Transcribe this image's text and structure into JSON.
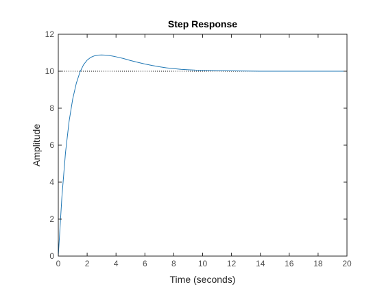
{
  "chart_data": {
    "type": "line",
    "title": "Step Response",
    "xlabel": "Time (seconds)",
    "ylabel": "Amplitude",
    "xlim": [
      0,
      20
    ],
    "ylim": [
      0,
      12
    ],
    "xticks": [
      0,
      2,
      4,
      6,
      8,
      10,
      12,
      14,
      16,
      18,
      20
    ],
    "yticks": [
      0,
      2,
      4,
      6,
      8,
      10,
      12
    ],
    "grid": false,
    "legend": "none",
    "series": [
      {
        "color": "#1f77b4",
        "style": "solid",
        "x": [
          0,
          0.25,
          0.5,
          0.75,
          1.0,
          1.25,
          1.5,
          1.75,
          2.0,
          2.25,
          2.5,
          2.75,
          3.0,
          3.25,
          3.5,
          3.75,
          4.0,
          4.5,
          5.0,
          5.5,
          6.0,
          6.5,
          7.0,
          7.5,
          8.0,
          8.5,
          9.0,
          9.5,
          10.0,
          11.0,
          12.0,
          13.0,
          14.0,
          16.0,
          18.0,
          20.0
        ],
        "y": [
          0,
          3.2,
          5.6,
          7.3,
          8.5,
          9.35,
          9.95,
          10.35,
          10.6,
          10.75,
          10.83,
          10.87,
          10.88,
          10.87,
          10.85,
          10.82,
          10.78,
          10.69,
          10.58,
          10.48,
          10.39,
          10.31,
          10.24,
          10.18,
          10.14,
          10.1,
          10.08,
          10.06,
          10.05,
          10.03,
          10.02,
          10.01,
          10.0,
          10.0,
          10.0,
          10.0
        ]
      }
    ],
    "reference_line": {
      "y": 10,
      "style": "dotted",
      "color": "#000000"
    }
  }
}
